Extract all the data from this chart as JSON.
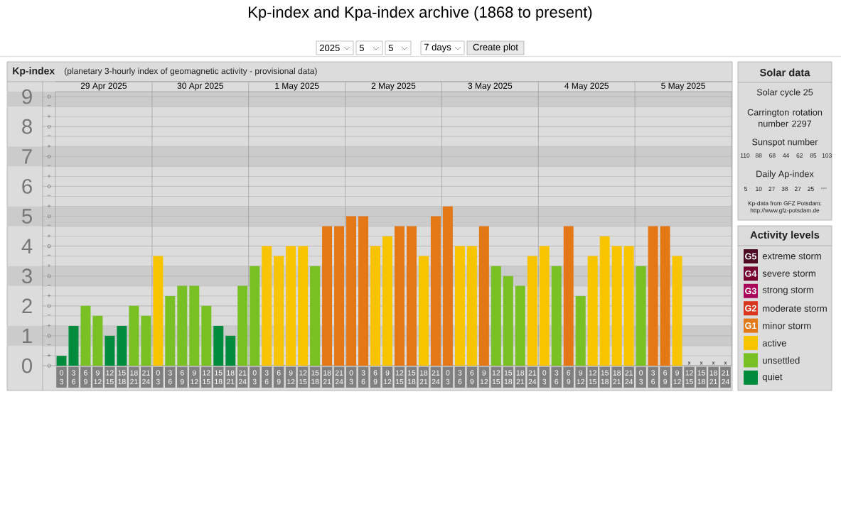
{
  "chart_data": [
    {
      "type": "bar",
      "title": "Kp-index",
      "subtitle": "(planetary 3-hourly index of geomagnetic activity - provisional data)",
      "categories": [
        "0 3",
        "3 6",
        "6 9",
        "9 12",
        "12 15",
        "15 18",
        "18 21",
        "21 24",
        "0 3",
        "3 6",
        "6 9",
        "9 12",
        "12 15",
        "15 18",
        "18 21",
        "21 24",
        "0 3",
        "3 6",
        "6 9",
        "9 12",
        "12 15",
        "15 18",
        "18 21",
        "21 24",
        "0 3",
        "3 6",
        "6 9",
        "9 12",
        "12 15",
        "15 18",
        "18 21",
        "21 24",
        "0 3",
        "3 6",
        "6 9",
        "9 12",
        "12 15",
        "15 18",
        "18 21",
        "21 24",
        "0 3",
        "3 6",
        "6 9",
        "9 12",
        "12 15",
        "15 18",
        "18 21",
        "21 24",
        "0 3",
        "3 6",
        "6 9",
        "9 12",
        "12 15",
        "15 18",
        "18 21",
        "21 24"
      ],
      "series": [
        {
          "name": "extreme storm",
          "color": "#4d0a22",
          "values": [
            null,
            null,
            null,
            null,
            null,
            null,
            null,
            null,
            null,
            null,
            null,
            null,
            null,
            null,
            null,
            null,
            null,
            null,
            null,
            null,
            null,
            null,
            null,
            null,
            null,
            null,
            null,
            null,
            null,
            null,
            null,
            null,
            null,
            null,
            null,
            null,
            null,
            null,
            null,
            null,
            null,
            null,
            null,
            null,
            null,
            null,
            null,
            null,
            null,
            null,
            null,
            null,
            null,
            null,
            null,
            null
          ]
        },
        {
          "name": "severe storm",
          "color": "#760030",
          "values": [
            null,
            null,
            null,
            null,
            null,
            null,
            null,
            null,
            null,
            null,
            null,
            null,
            null,
            null,
            null,
            null,
            null,
            null,
            null,
            null,
            null,
            null,
            null,
            null,
            null,
            null,
            null,
            null,
            null,
            null,
            null,
            null,
            null,
            null,
            null,
            null,
            null,
            null,
            null,
            null,
            null,
            null,
            null,
            null,
            null,
            null,
            null,
            null,
            null,
            null,
            null,
            null,
            null,
            null,
            null,
            null
          ]
        },
        {
          "name": "strong storm",
          "color": "#a8075a",
          "values": [
            null,
            null,
            null,
            null,
            null,
            null,
            null,
            null,
            null,
            null,
            null,
            null,
            null,
            null,
            null,
            null,
            null,
            null,
            null,
            null,
            null,
            null,
            null,
            null,
            null,
            null,
            null,
            null,
            null,
            null,
            null,
            null,
            null,
            null,
            null,
            null,
            null,
            null,
            null,
            null,
            null,
            null,
            null,
            null,
            null,
            null,
            null,
            null,
            null,
            null,
            null,
            null,
            null,
            null,
            null,
            null
          ]
        },
        {
          "name": "moderate storm",
          "color": "#d9351e",
          "values": [
            null,
            null,
            null,
            null,
            null,
            null,
            null,
            null,
            null,
            null,
            null,
            null,
            null,
            null,
            null,
            null,
            null,
            null,
            null,
            null,
            null,
            null,
            null,
            null,
            null,
            null,
            null,
            null,
            null,
            null,
            null,
            null,
            null,
            null,
            null,
            null,
            null,
            null,
            null,
            null,
            null,
            null,
            null,
            null,
            null,
            null,
            null,
            null,
            null,
            null,
            null,
            null,
            null,
            null,
            null,
            null
          ]
        },
        {
          "name": "minor storm",
          "color": "#e47716",
          "values": [
            null,
            null,
            null,
            null,
            null,
            null,
            null,
            null,
            null,
            null,
            null,
            null,
            null,
            null,
            null,
            null,
            null,
            null,
            null,
            null,
            null,
            null,
            4.67,
            4.67,
            5,
            5,
            null,
            null,
            4.67,
            4.67,
            null,
            5,
            5.33,
            null,
            null,
            4.67,
            null,
            null,
            null,
            null,
            null,
            null,
            4.67,
            null,
            null,
            null,
            null,
            null,
            null,
            4.67,
            4.67,
            null,
            null,
            null,
            null,
            null
          ]
        },
        {
          "name": "active",
          "color": "#f8c400",
          "values": [
            null,
            null,
            null,
            null,
            null,
            null,
            null,
            null,
            3.67,
            null,
            null,
            null,
            null,
            null,
            null,
            null,
            null,
            4,
            3.67,
            4,
            4,
            null,
            null,
            null,
            null,
            null,
            4,
            4.33,
            null,
            null,
            3.67,
            null,
            null,
            4,
            4,
            null,
            null,
            null,
            null,
            3.67,
            4,
            null,
            null,
            null,
            3.67,
            4.33,
            4,
            4,
            null,
            null,
            null,
            3.67,
            null,
            null,
            null,
            null
          ]
        },
        {
          "name": "unsettled",
          "color": "#78c023",
          "values": [
            null,
            null,
            2,
            1.67,
            null,
            null,
            2,
            1.67,
            null,
            2.33,
            2.67,
            2.67,
            2,
            null,
            null,
            2.67,
            3.33,
            null,
            null,
            null,
            null,
            3.33,
            null,
            null,
            null,
            null,
            null,
            null,
            null,
            null,
            null,
            null,
            null,
            null,
            null,
            null,
            3.33,
            3,
            2.67,
            null,
            null,
            3.33,
            null,
            2.33,
            null,
            null,
            null,
            null,
            3.33,
            null,
            null,
            null,
            null,
            null,
            null,
            null
          ]
        },
        {
          "name": "quiet",
          "color": "#008c3c",
          "values": [
            0.33,
            1.33,
            null,
            null,
            1,
            1.33,
            null,
            null,
            null,
            null,
            null,
            null,
            null,
            1.33,
            1,
            null,
            null,
            null,
            null,
            null,
            null,
            null,
            null,
            null,
            null,
            null,
            null,
            null,
            null,
            null,
            null,
            null,
            null,
            null,
            null,
            null,
            null,
            null,
            null,
            null,
            null,
            null,
            null,
            null,
            null,
            null,
            null,
            null,
            null,
            null,
            null,
            null,
            null,
            null,
            null,
            null
          ]
        }
      ],
      "value_labels": [
        null,
        null,
        null,
        null,
        null,
        null,
        null,
        null,
        null,
        null,
        null,
        null,
        null,
        null,
        null,
        null,
        null,
        null,
        null,
        null,
        null,
        null,
        null,
        null,
        null,
        null,
        null,
        null,
        null,
        null,
        null,
        null,
        null,
        null,
        null,
        null,
        null,
        null,
        null,
        null,
        null,
        null,
        null,
        null,
        null,
        null,
        null,
        null,
        null,
        null,
        null,
        null,
        "x",
        "x",
        "x",
        "x"
      ],
      "ylim": [
        0,
        9.17
      ],
      "yticks": [
        0,
        1,
        2,
        3,
        4,
        5,
        6,
        7,
        8,
        9
      ],
      "bands": [
        {
          "axis": "y",
          "from": 0.67,
          "to": 1.33,
          "color": "#cbcbcb"
        },
        {
          "axis": "y",
          "from": 2.67,
          "to": 3.33,
          "color": "#cbcbcb"
        },
        {
          "axis": "y",
          "from": 4.67,
          "to": 5.33,
          "color": "#cbcbcb"
        },
        {
          "axis": "y",
          "from": 6.67,
          "to": 7.33,
          "color": "#cbcbcb"
        },
        {
          "axis": "y",
          "from": 8.67,
          "to": 9.17,
          "color": "#cbcbcb"
        }
      ],
      "grid": "y",
      "legend": "right",
      "legend_title": "Activity levels",
      "annotations": [
        "29 Apr 2025",
        "30 Apr 2025",
        "1 May 2025",
        "2 May 2025",
        "3 May 2025",
        "4 May 2025",
        "5 May 2025",
        "G5",
        "G4",
        "G3",
        "G2",
        "G1",
        "o",
        "+",
        "−",
        "o",
        "+",
        "−",
        "o",
        "+",
        "−",
        "o",
        "+",
        "−",
        "o",
        "+",
        "−",
        "o",
        "+",
        "−",
        "o",
        "+",
        "−",
        "o",
        "+",
        "−",
        "o",
        "+",
        "−",
        "o"
      ]
    },
    {
      "type": "other",
      "title": "Kp-index and Kpa-index archive (1868 to present)",
      "annotations": [
        "2025",
        "5",
        "5",
        "7 days",
        "Create plot"
      ]
    },
    {
      "type": "other",
      "title": "Solar data",
      "annotations": [
        "Solar cycle 25",
        "Carrington rotation number 2297",
        "Sunspot number",
        "110",
        "88",
        "68",
        "44",
        "62",
        "85",
        "103",
        "Daily Ap-index",
        "5",
        "10",
        "27",
        "38",
        "27",
        "25",
        "---",
        "Kp-data from GFZ Potsdam:",
        "http://www.gfz-potsdam.de"
      ]
    }
  ]
}
